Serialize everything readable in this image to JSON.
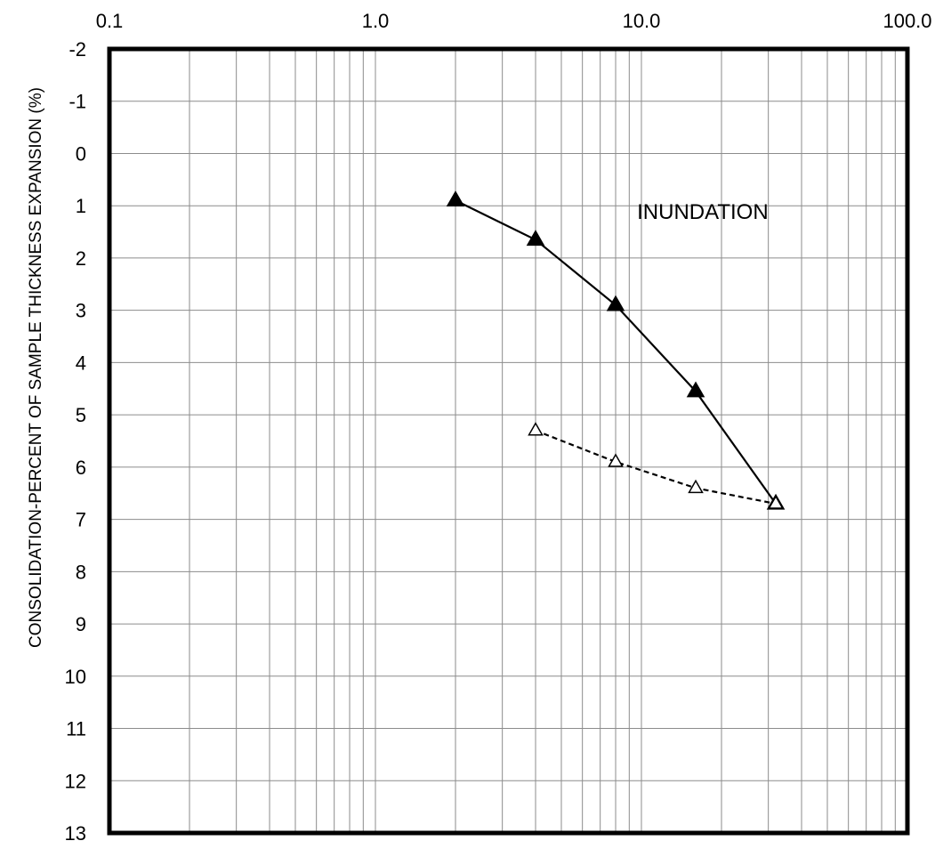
{
  "chart_data": {
    "type": "line",
    "title": "",
    "xlabel": "",
    "ylabel": "CONSOLIDATION-PERCENT OF SAMPLE THICKNESS EXPANSION (%)",
    "x_scale": "log",
    "xlim": [
      0.1,
      100
    ],
    "ylim": [
      -2,
      13
    ],
    "y_inverted": true,
    "x_ticks": [
      "0.1",
      "1.0",
      "10.0",
      "100.0"
    ],
    "y_ticks": [
      "-2",
      "-1",
      "0",
      "1",
      "2",
      "3",
      "4",
      "5",
      "6",
      "7",
      "8",
      "9",
      "10",
      "11",
      "12",
      "13"
    ],
    "grid": true,
    "annotations": [
      {
        "text": "INUNDATION",
        "x": 17,
        "y": 1.1
      }
    ],
    "series": [
      {
        "style": "solid",
        "marker": "filled-triangle",
        "color": "#000000",
        "x": [
          2,
          4,
          8,
          16,
          32
        ],
        "y": [
          0.9,
          1.65,
          2.9,
          4.55,
          6.7
        ]
      },
      {
        "style": "dashed",
        "marker": "open-triangle",
        "color": "#000000",
        "x": [
          4,
          8,
          16,
          32
        ],
        "y": [
          5.3,
          5.9,
          6.4,
          6.7
        ]
      }
    ]
  }
}
